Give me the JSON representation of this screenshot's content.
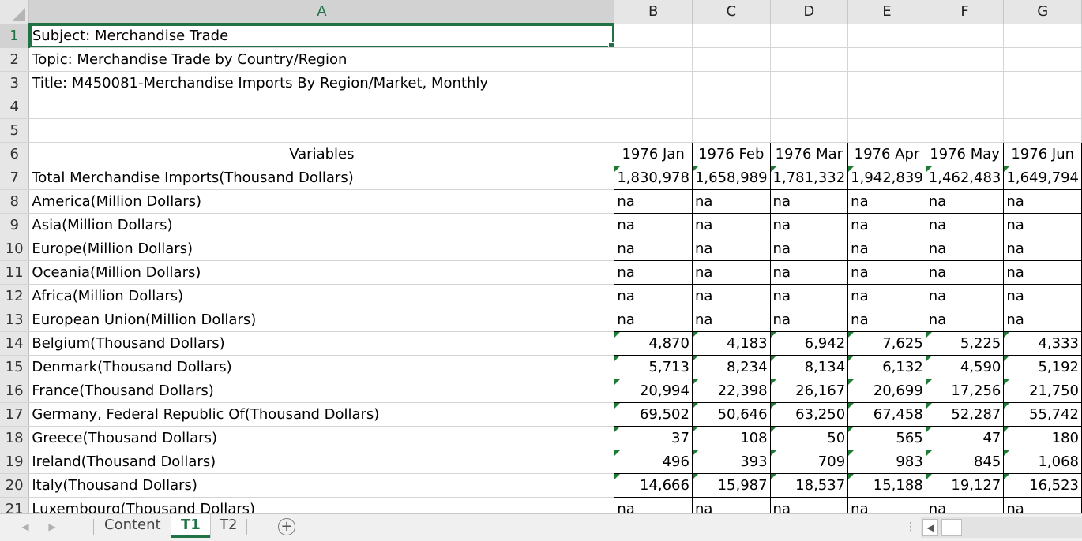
{
  "columns": [
    "A",
    "B",
    "C",
    "D",
    "E",
    "F",
    "G"
  ],
  "rows": [
    {
      "n": "1",
      "a": "Subject: Merchandise Trade",
      "v": [
        "",
        "",
        "",
        "",
        "",
        ""
      ]
    },
    {
      "n": "2",
      "a": "Topic: Merchandise Trade by Country/Region",
      "v": [
        "",
        "",
        "",
        "",
        "",
        ""
      ]
    },
    {
      "n": "3",
      "a": "Title: M450081-Merchandise Imports By Region/Market, Monthly",
      "v": [
        "",
        "",
        "",
        "",
        "",
        ""
      ]
    },
    {
      "n": "4",
      "a": "",
      "v": [
        "",
        "",
        "",
        "",
        "",
        ""
      ]
    },
    {
      "n": "5",
      "a": "",
      "v": [
        "",
        "",
        "",
        "",
        "",
        ""
      ]
    },
    {
      "n": "6",
      "a": "Variables",
      "v": [
        "1976 Jan",
        "1976 Feb",
        "1976 Mar",
        "1976 Apr",
        "1976 May",
        "1976 Jun"
      ]
    },
    {
      "n": "7",
      "a": "Total Merchandise Imports(Thousand Dollars)",
      "v": [
        "1,830,978",
        "1,658,989",
        "1,781,332",
        "1,942,839",
        "1,462,483",
        "1,649,794"
      ]
    },
    {
      "n": "8",
      "a": "America(Million Dollars)",
      "v": [
        "na",
        "na",
        "na",
        "na",
        "na",
        "na"
      ]
    },
    {
      "n": "9",
      "a": "Asia(Million Dollars)",
      "v": [
        "na",
        "na",
        "na",
        "na",
        "na",
        "na"
      ]
    },
    {
      "n": "10",
      "a": "Europe(Million Dollars)",
      "v": [
        "na",
        "na",
        "na",
        "na",
        "na",
        "na"
      ]
    },
    {
      "n": "11",
      "a": "Oceania(Million Dollars)",
      "v": [
        "na",
        "na",
        "na",
        "na",
        "na",
        "na"
      ]
    },
    {
      "n": "12",
      "a": "Africa(Million Dollars)",
      "v": [
        "na",
        "na",
        "na",
        "na",
        "na",
        "na"
      ]
    },
    {
      "n": "13",
      "a": "European Union(Million Dollars)",
      "v": [
        "na",
        "na",
        "na",
        "na",
        "na",
        "na"
      ]
    },
    {
      "n": "14",
      "a": "Belgium(Thousand Dollars)",
      "v": [
        "4,870",
        "4,183",
        "6,942",
        "7,625",
        "5,225",
        "4,333"
      ]
    },
    {
      "n": "15",
      "a": "Denmark(Thousand Dollars)",
      "v": [
        "5,713",
        "8,234",
        "8,134",
        "6,132",
        "4,590",
        "5,192"
      ]
    },
    {
      "n": "16",
      "a": "France(Thousand Dollars)",
      "v": [
        "20,994",
        "22,398",
        "26,167",
        "20,699",
        "17,256",
        "21,750"
      ]
    },
    {
      "n": "17",
      "a": "Germany, Federal Republic Of(Thousand Dollars)",
      "v": [
        "69,502",
        "50,646",
        "63,250",
        "67,458",
        "52,287",
        "55,742"
      ]
    },
    {
      "n": "18",
      "a": "Greece(Thousand Dollars)",
      "v": [
        "37",
        "108",
        "50",
        "565",
        "47",
        "180"
      ]
    },
    {
      "n": "19",
      "a": "Ireland(Thousand Dollars)",
      "v": [
        "496",
        "393",
        "709",
        "983",
        "845",
        "1,068"
      ]
    },
    {
      "n": "20",
      "a": "Italy(Thousand Dollars)",
      "v": [
        "14,666",
        "15,987",
        "18,537",
        "15,188",
        "19,127",
        "16,523"
      ]
    },
    {
      "n": "21",
      "a": "Luxembourg(Thousand Dollars)",
      "v": [
        "na",
        "na",
        "na",
        "na",
        "na",
        "na"
      ]
    }
  ],
  "sheet_tabs": [
    "Content",
    "T1",
    "T2"
  ],
  "active_tab": "T1",
  "accent_color": "#217346",
  "icons": {
    "add_sheet": "plus-circle-icon",
    "tab_prev": "chevron-left-icon",
    "tab_next": "chevron-right-icon",
    "scroll_left": "caret-left-icon"
  }
}
